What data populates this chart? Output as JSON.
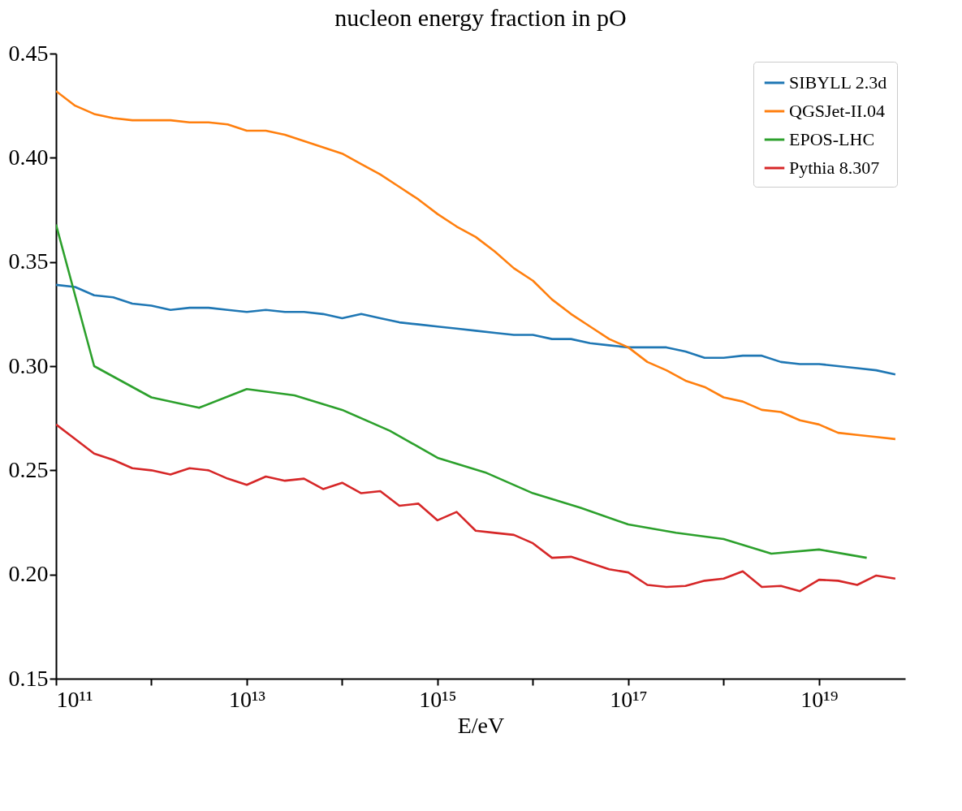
{
  "chart_data": {
    "type": "line",
    "title": "nucleon energy fraction in pO",
    "xlabel": "E/eV",
    "log": "x",
    "grid": false,
    "legend": "top right",
    "marker": "none",
    "line_style": "solid",
    "xlim": [
      100000000000.0,
      8e+19
    ],
    "xticks": [
      {
        "value": 100000000000.0,
        "label": "10¹¹"
      },
      {
        "value": 1000000000000.0,
        "label": null
      },
      {
        "value": 10000000000000.0,
        "label": "10¹³"
      },
      {
        "value": 100000000000000.0,
        "label": null
      },
      {
        "value": 1000000000000000.0,
        "label": "10¹⁵"
      },
      {
        "value": 1e+16,
        "label": null
      },
      {
        "value": 1e+17,
        "label": "10¹⁷"
      },
      {
        "value": 1e+18,
        "label": null
      },
      {
        "value": 1e+19,
        "label": "10¹⁹"
      }
    ],
    "ylim": [
      0.15,
      0.45
    ],
    "yticks": [
      0.15,
      {
        "value": 0.2,
        "label": "0.20"
      },
      0.25,
      {
        "value": 0.3,
        "label": "0.30"
      },
      0.35,
      {
        "value": 0.4,
        "label": "0.40"
      },
      0.45
    ],
    "x": [
      100000000000.0,
      158500000000.0,
      251200000000.0,
      398100000000.0,
      631000000000.0,
      1000000000000.0,
      1585000000000.0,
      2512000000000.0,
      3981000000000.0,
      6310000000000.0,
      10000000000000.0,
      15850000000000.0,
      25120000000000.0,
      39810000000000.0,
      63100000000000.0,
      100000000000000.0,
      158500000000000.0,
      251200000000000.0,
      398100000000000.0,
      631000000000000.0,
      1000000000000000.0,
      1585000000000000.0,
      2512000000000000.0,
      3981000000000000.0,
      6310000000000000.0,
      1e+16,
      1.585e+16,
      2.512e+16,
      3.981e+16,
      6.31e+16,
      1e+17,
      1.585e+17,
      2.512e+17,
      3.981e+17,
      6.31e+17,
      1e+18,
      1.585e+18,
      2.512e+18,
      3.981e+18,
      6.31e+18,
      1e+19,
      1.585e+19,
      2.512e+19,
      3.981e+19,
      6.31e+19
    ],
    "series": [
      {
        "name": "SIBYLL 2.3d",
        "color": "#1f77b4",
        "values": [
          0.339,
          0.338,
          0.334,
          0.333,
          0.33,
          0.329,
          0.327,
          0.328,
          0.328,
          0.327,
          0.326,
          0.327,
          0.326,
          0.326,
          0.325,
          0.323,
          0.325,
          0.323,
          0.321,
          0.32,
          0.319,
          0.318,
          0.317,
          0.316,
          0.315,
          0.315,
          0.313,
          0.313,
          0.311,
          0.31,
          0.309,
          0.309,
          0.309,
          0.307,
          0.304,
          0.304,
          0.305,
          0.305,
          0.302,
          0.301,
          0.301,
          0.3,
          0.299,
          0.298,
          0.296
        ]
      },
      {
        "name": "QGSJet-II.04",
        "color": "#ff7f0e",
        "values": [
          0.432,
          0.425,
          0.421,
          0.419,
          0.418,
          0.418,
          0.418,
          0.417,
          0.417,
          0.416,
          0.413,
          0.413,
          0.411,
          0.408,
          0.405,
          0.402,
          0.397,
          0.392,
          0.386,
          0.38,
          0.373,
          0.367,
          0.362,
          0.355,
          0.347,
          0.341,
          0.332,
          0.325,
          0.319,
          0.313,
          0.309,
          0.302,
          0.298,
          0.293,
          0.29,
          0.285,
          0.283,
          0.279,
          0.278,
          0.274,
          0.272,
          0.268,
          0.267,
          0.266,
          0.265
        ]
      },
      {
        "name": "EPOS-LHC",
        "color": "#2ca02c",
        "x": [
          100000000000.0,
          251200000000.0,
          1000000000000.0,
          3162000000000.0,
          10000000000000.0,
          31620000000000.0,
          100000000000000.0,
          316200000000000.0,
          1000000000000000.0,
          3162000000000000.0,
          1e+16,
          3.162e+16,
          1e+17,
          3.162e+17,
          1e+18,
          3.162e+18,
          1e+19,
          3.162e+19
        ],
        "values": [
          0.368,
          0.3,
          0.285,
          0.28,
          0.289,
          0.286,
          0.279,
          0.269,
          0.256,
          0.249,
          0.239,
          0.232,
          0.224,
          0.22,
          0.217,
          0.21,
          0.212,
          0.208
        ]
      },
      {
        "name": "Pythia 8.307",
        "color": "#d62728",
        "values": [
          0.272,
          0.265,
          0.258,
          0.255,
          0.251,
          0.25,
          0.248,
          0.251,
          0.25,
          0.246,
          0.243,
          0.247,
          0.245,
          0.246,
          0.241,
          0.244,
          0.239,
          0.24,
          0.233,
          0.234,
          0.226,
          0.23,
          0.221,
          0.22,
          0.219,
          0.215,
          0.208,
          0.2085,
          0.2055,
          0.2025,
          0.201,
          0.195,
          0.194,
          0.1945,
          0.197,
          0.198,
          0.2015,
          0.194,
          0.1945,
          0.192,
          0.1975,
          0.197,
          0.195,
          0.1995,
          0.198
        ]
      }
    ]
  }
}
